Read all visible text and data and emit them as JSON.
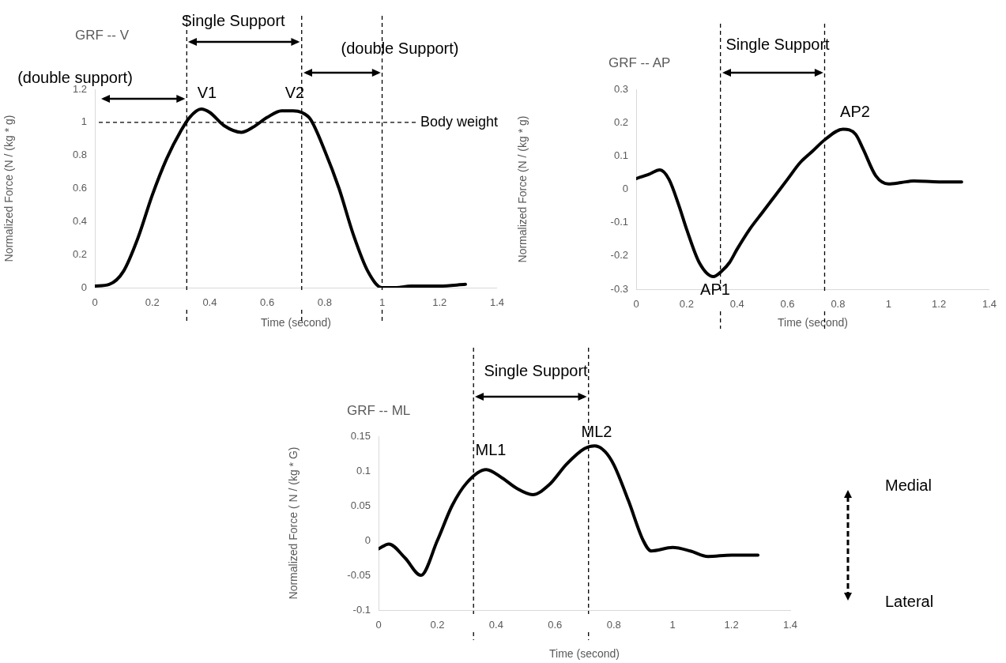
{
  "chart_data": [
    {
      "type": "line",
      "title": "GRF -- V",
      "xlabel": "Time (second)",
      "ylabel": "Normalized Force (N / (kg * g)",
      "marker": "none",
      "x": [
        0,
        0.05,
        0.1,
        0.15,
        0.2,
        0.25,
        0.3,
        0.33,
        0.37,
        0.4,
        0.45,
        0.51,
        0.55,
        0.6,
        0.65,
        0.69,
        0.72,
        0.75,
        0.8,
        0.85,
        0.9,
        0.95,
        1.0,
        1.05,
        1.1,
        1.2,
        1.29
      ],
      "series": [
        {
          "color": "#000000",
          "values": [
            0.01,
            0.02,
            0.1,
            0.3,
            0.56,
            0.78,
            0.95,
            1.03,
            1.08,
            1.06,
            0.98,
            0.94,
            0.97,
            1.03,
            1.07,
            1.07,
            1.06,
            1.02,
            0.83,
            0.6,
            0.32,
            0.1,
            0.0,
            0.0,
            0.01,
            0.01,
            0.02
          ]
        }
      ],
      "xlim": [
        0,
        1.4
      ],
      "ylim": [
        0,
        1.2
      ],
      "xticks": [
        0,
        0.2,
        0.4,
        0.6,
        0.8,
        1,
        1.2,
        1.4
      ],
      "yticks": [
        0,
        0.2,
        0.4,
        0.6,
        0.8,
        1,
        1.2
      ],
      "ref_lines": [
        {
          "axis": "x",
          "value": 0.32,
          "line_style": "dashed"
        },
        {
          "axis": "x",
          "value": 0.72,
          "line_style": "dashed"
        },
        {
          "axis": "x",
          "value": 1,
          "line_style": "dashed"
        },
        {
          "axis": "y",
          "value": 1,
          "label": "Body weight",
          "line_style": "dashed"
        }
      ],
      "annotations": [
        "Single Support",
        "(double Support)",
        "(double support)",
        "V1",
        "V2"
      ]
    },
    {
      "type": "line",
      "title": "GRF -- AP",
      "xlabel": "Time (second)",
      "ylabel": "Normalized Force (N / (kg * g)",
      "marker": "none",
      "x": [
        0,
        0.05,
        0.094,
        0.13,
        0.17,
        0.2,
        0.25,
        0.306,
        0.34,
        0.37,
        0.4,
        0.45,
        0.5,
        0.55,
        0.6,
        0.65,
        0.7,
        0.75,
        0.82,
        0.87,
        0.9,
        0.95,
        1.0,
        1.05,
        1.1,
        1.2,
        1.29
      ],
      "series": [
        {
          "color": "#000000",
          "values": [
            0.032,
            0.045,
            0.058,
            0.03,
            -0.05,
            -0.12,
            -0.22,
            -0.262,
            -0.245,
            -0.22,
            -0.18,
            -0.12,
            -0.07,
            -0.02,
            0.03,
            0.08,
            0.115,
            0.15,
            0.18,
            0.165,
            0.12,
            0.04,
            0.016,
            0.02,
            0.025,
            0.022,
            0.022
          ]
        }
      ],
      "xlim": [
        0,
        1.4
      ],
      "ylim": [
        -0.3,
        0.3
      ],
      "xticks": [
        0,
        0.2,
        0.4,
        0.6,
        0.8,
        1,
        1.2,
        1.4
      ],
      "yticks": [
        -0.3,
        -0.2,
        -0.1,
        0,
        0.1,
        0.2,
        0.3
      ],
      "ref_lines": [
        {
          "axis": "x",
          "value": 0.334,
          "line_style": "dashed"
        },
        {
          "axis": "x",
          "value": 0.747,
          "line_style": "dashed"
        }
      ],
      "annotations": [
        "Single Support",
        "AP1",
        "AP2"
      ]
    },
    {
      "type": "line",
      "title": "GRF -- ML",
      "xlabel": "Time (second)",
      "ylabel": "Normalized Force ( N / (kg * G)",
      "marker": "none",
      "x": [
        0,
        0.035,
        0.09,
        0.144,
        0.2,
        0.25,
        0.3,
        0.366,
        0.42,
        0.47,
        0.524,
        0.58,
        0.64,
        0.7,
        0.735,
        0.77,
        0.8,
        0.85,
        0.9,
        0.927,
        1.0,
        1.06,
        1.12,
        1.2,
        1.29
      ],
      "series": [
        {
          "color": "#000000",
          "values": [
            -0.012,
            -0.005,
            -0.025,
            -0.05,
            0.0,
            0.05,
            0.083,
            0.102,
            0.09,
            0.075,
            0.066,
            0.08,
            0.11,
            0.132,
            0.136,
            0.128,
            0.109,
            0.057,
            0.0,
            -0.015,
            -0.01,
            -0.015,
            -0.023,
            -0.021,
            -0.021
          ]
        }
      ],
      "xlim": [
        0,
        1.4
      ],
      "ylim": [
        -0.1,
        0.15
      ],
      "xticks": [
        0,
        0.2,
        0.4,
        0.6,
        0.8,
        1,
        1.2,
        1.4
      ],
      "yticks": [
        -0.1,
        -0.05,
        0,
        0.05,
        0.1,
        0.15
      ],
      "ref_lines": [
        {
          "axis": "x",
          "value": 0.323,
          "line_style": "dashed"
        },
        {
          "axis": "x",
          "value": 0.714,
          "line_style": "dashed"
        }
      ],
      "annotations": [
        "Single Support",
        "ML1",
        "ML2",
        "Medial",
        "Lateral"
      ]
    }
  ]
}
